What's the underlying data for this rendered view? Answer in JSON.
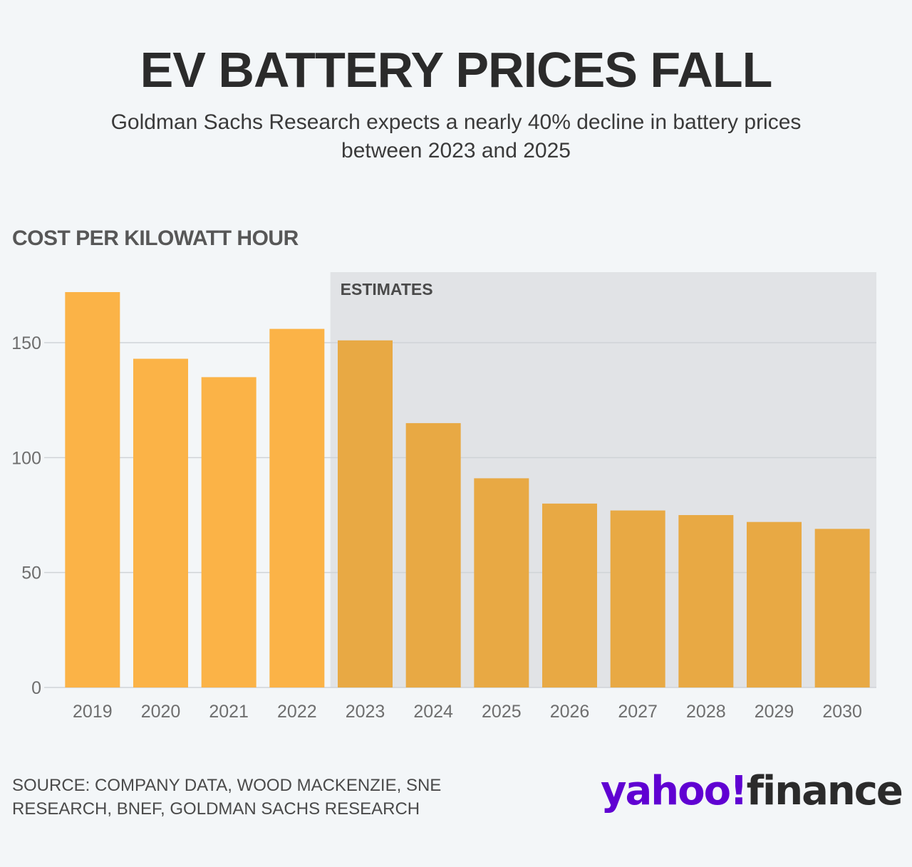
{
  "header": {
    "title": "EV BATTERY PRICES FALL",
    "subtitle_line1": "Goldman Sachs Research expects a nearly 40% decline in battery prices",
    "subtitle_line2": "between 2023 and 2025"
  },
  "chart_data": {
    "type": "bar",
    "ylabel": "COST PER KILOWATT HOUR",
    "xlabel": "",
    "categories": [
      "2019",
      "2020",
      "2021",
      "2022",
      "2023",
      "2024",
      "2025",
      "2026",
      "2027",
      "2028",
      "2029",
      "2030"
    ],
    "values": [
      172,
      143,
      135,
      156,
      151,
      115,
      91,
      80,
      77,
      75,
      72,
      69
    ],
    "ylim": [
      0,
      180
    ],
    "yticks": [
      0,
      50,
      100,
      150
    ],
    "grid": true,
    "estimates_label": "ESTIMATES",
    "estimates_from": "2023",
    "colors": {
      "actual": "#fbb347",
      "estimate": "#e8a944",
      "estimate_region": "#e1e3e6",
      "grid": "#cfd3d7"
    }
  },
  "footer": {
    "source_line1": "SOURCE: COMPANY DATA, WOOD MACKENZIE, SNE",
    "source_line2": "RESEARCH, BNEF, GOLDMAN SACHS RESEARCH",
    "logo_yahoo": "yahoo!",
    "logo_finance": "finance"
  }
}
